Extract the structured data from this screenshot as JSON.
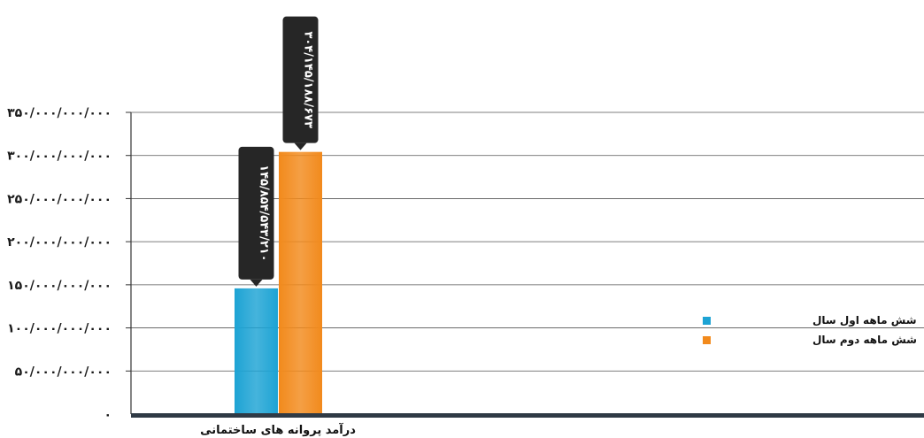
{
  "chart_data": {
    "type": "bar",
    "categories": [
      "درآمد پروانه های ساختمانی"
    ],
    "series": [
      {
        "name": "شش ماهه اول سال",
        "values": [
          145854543210
        ],
        "label": "۱۴۵/۸۵۴/۵۴۳/۲۱۰",
        "color": "#1da3d4"
      },
      {
        "name": "شش ماهه دوم سال",
        "values": [
          304145188673
        ],
        "label": "۳۰۴/۱۴۵/۱۸۸/۶۷۳",
        "color": "#f28a1c"
      }
    ],
    "ylim": [
      0,
      350000000000
    ],
    "yticks": [
      {
        "value": 0,
        "label": "۰"
      },
      {
        "value": 50000000000,
        "label": "۵۰/۰۰۰/۰۰۰/۰۰۰"
      },
      {
        "value": 100000000000,
        "label": "۱۰۰/۰۰۰/۰۰۰/۰۰۰"
      },
      {
        "value": 150000000000,
        "label": "۱۵۰/۰۰۰/۰۰۰/۰۰۰"
      },
      {
        "value": 200000000000,
        "label": "۲۰۰/۰۰۰/۰۰۰/۰۰۰"
      },
      {
        "value": 250000000000,
        "label": "۲۵۰/۰۰۰/۰۰۰/۰۰۰"
      },
      {
        "value": 300000000000,
        "label": "۳۰۰/۰۰۰/۰۰۰/۰۰۰"
      },
      {
        "value": 350000000000,
        "label": "۳۵۰/۰۰۰/۰۰۰/۰۰۰"
      }
    ],
    "grid": true,
    "legend_position": "right",
    "axis_color": "#2f3a45",
    "label_box_color": "#262626"
  }
}
